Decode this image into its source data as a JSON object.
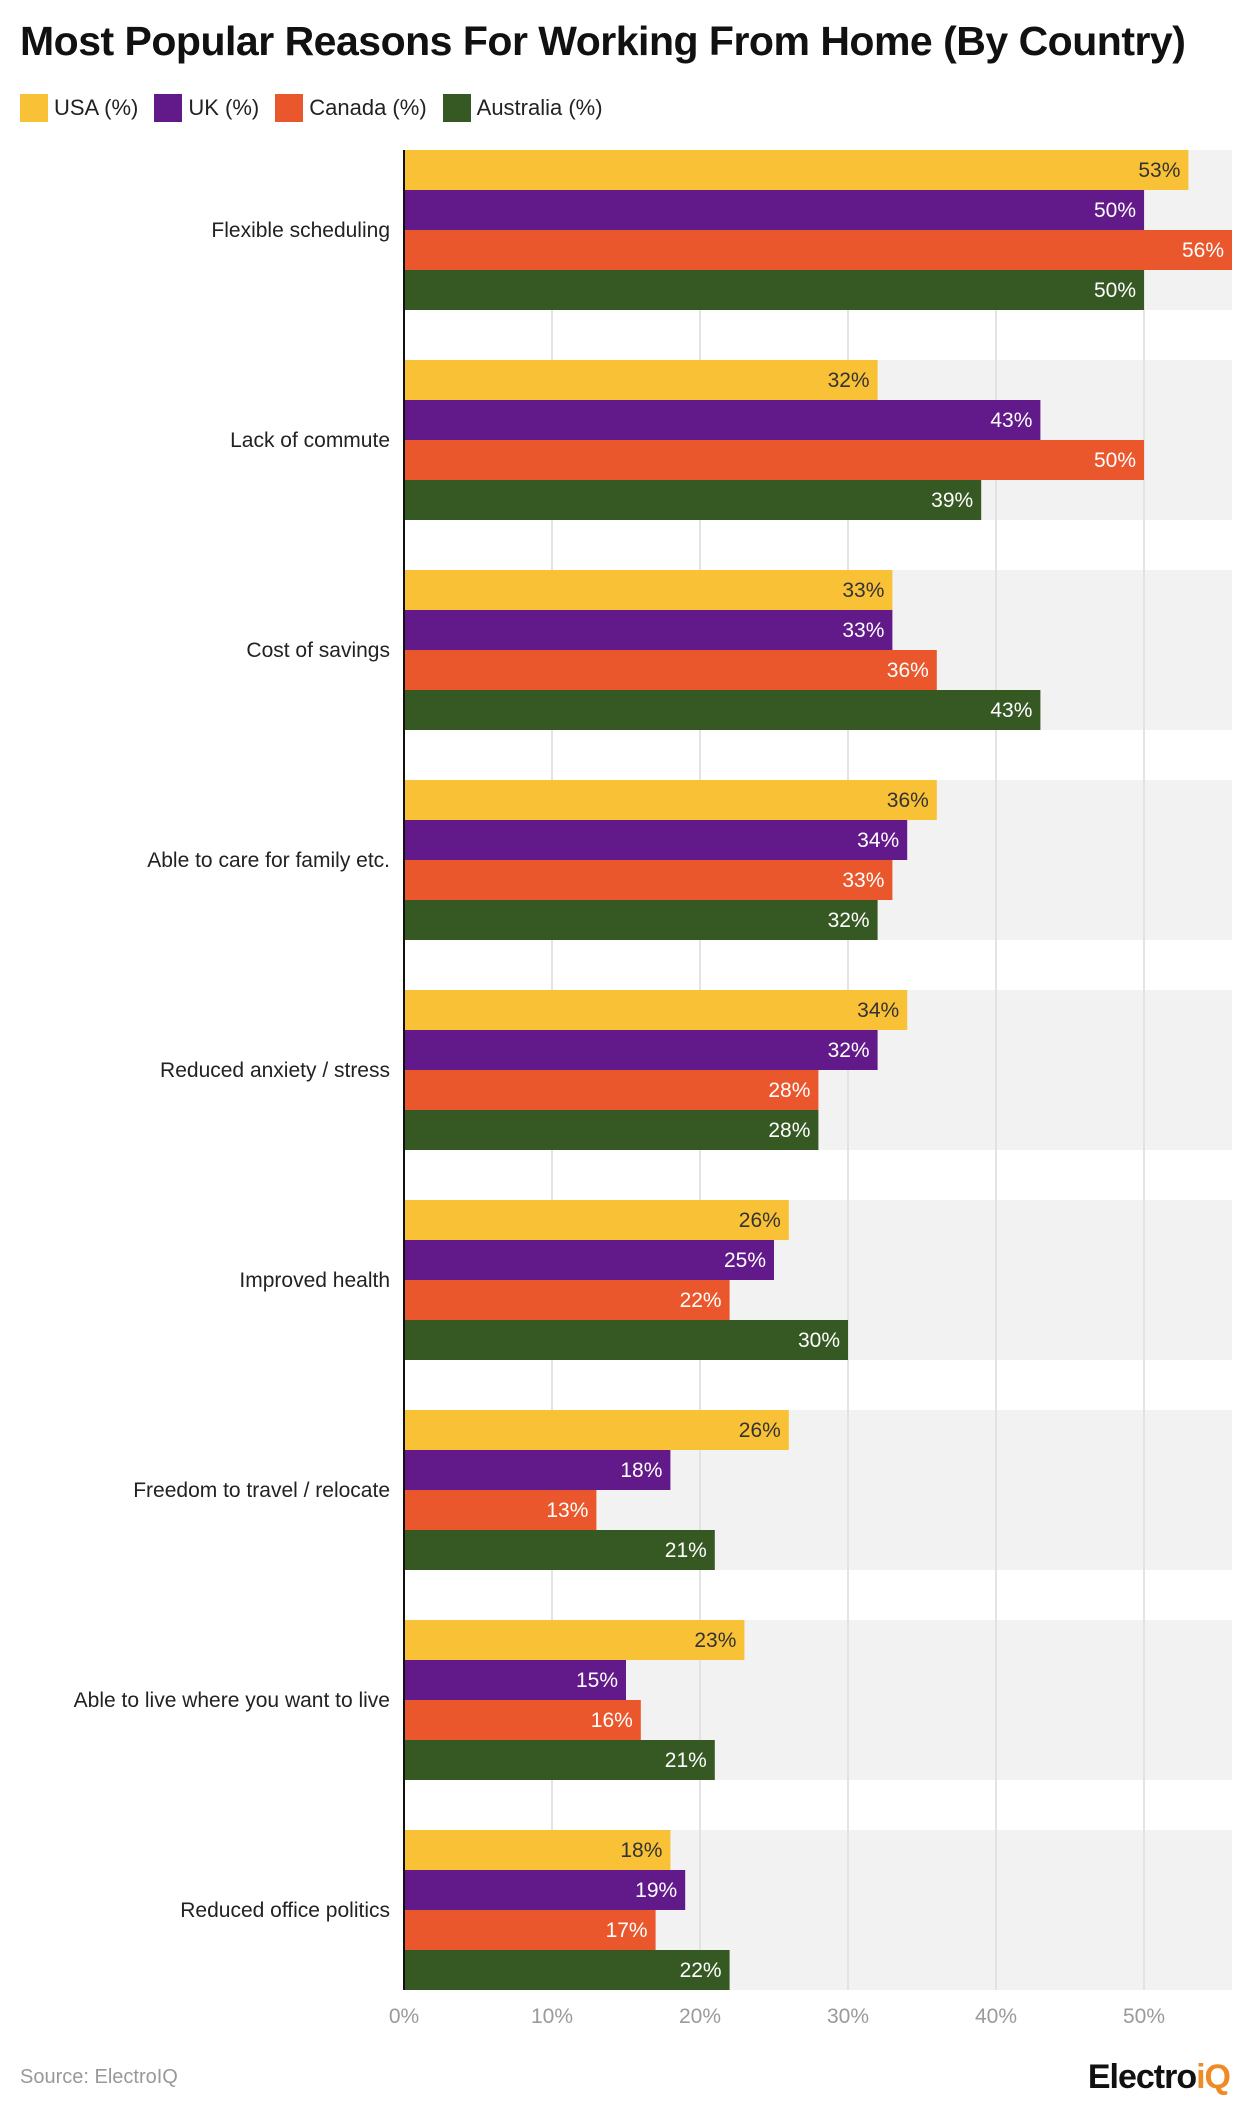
{
  "chart_data": {
    "type": "bar",
    "orientation": "horizontal",
    "title": "Most Popular Reasons For Working From Home (By Country)",
    "categories": [
      "Flexible scheduling",
      "Lack of commute",
      "Cost of savings",
      "Able to care for family etc.",
      "Reduced anxiety / stress",
      "Improved health",
      "Freedom to travel / relocate",
      "Able to live where you want to live",
      "Reduced office politics"
    ],
    "series": [
      {
        "name": "USA (%)",
        "color": "#f9c136",
        "values": [
          53,
          32,
          33,
          36,
          34,
          26,
          26,
          23,
          18
        ]
      },
      {
        "name": "UK (%)",
        "color": "#621a8a",
        "values": [
          50,
          43,
          33,
          34,
          32,
          25,
          18,
          15,
          19
        ]
      },
      {
        "name": "Canada (%)",
        "color": "#eb572d",
        "values": [
          56,
          50,
          36,
          33,
          28,
          22,
          13,
          16,
          17
        ]
      },
      {
        "name": "Australia (%)",
        "color": "#365924",
        "values": [
          50,
          39,
          43,
          32,
          28,
          30,
          21,
          21,
          22
        ]
      }
    ],
    "xlim": [
      0,
      56
    ],
    "xticks": [
      "0%",
      "10%",
      "20%",
      "30%",
      "40%",
      "50%"
    ],
    "xlabel": "",
    "ylabel": "",
    "grid": true,
    "legend": "top-left",
    "value_suffix": "%"
  },
  "footer": {
    "source": "Source: ElectroIQ",
    "logo_main": "Electro",
    "logo_accent": "iQ"
  }
}
